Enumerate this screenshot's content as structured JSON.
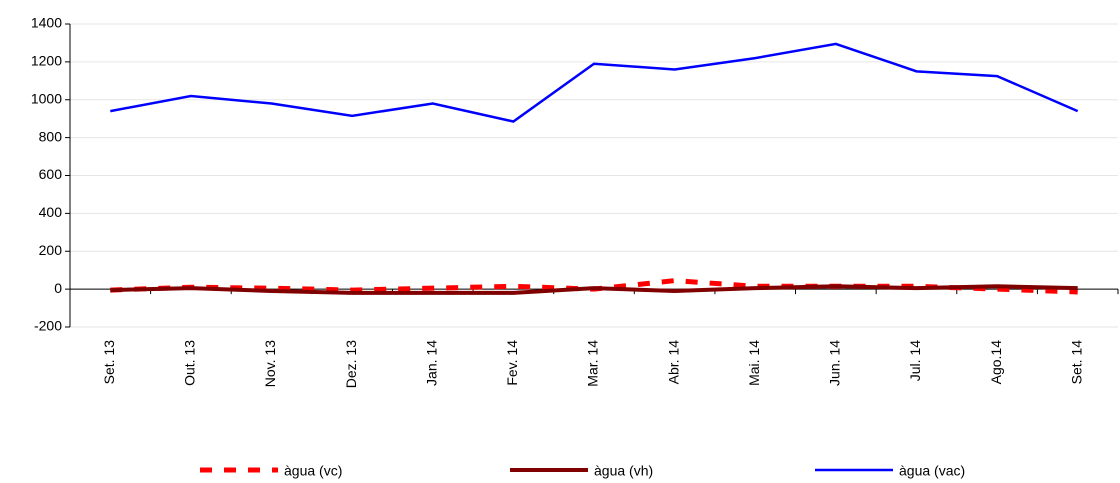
{
  "chart_data": {
    "type": "line",
    "categories": [
      "Set. 13",
      "Out. 13",
      "Nov. 13",
      "Dez. 13",
      "Jan. 14",
      "Fev. 14",
      "Mar. 14",
      "Abr. 14",
      "Mai. 14",
      "Jun. 14",
      "Jul. 14",
      "Ago.14",
      "Set. 14"
    ],
    "series": [
      {
        "name": "àgua (vc)",
        "color": "#ff0000",
        "dashed": true,
        "values": [
          -5,
          10,
          5,
          -5,
          5,
          15,
          0,
          45,
          15,
          15,
          15,
          0,
          -15
        ]
      },
      {
        "name": "àgua (vh)",
        "color": "#800000",
        "dashed": false,
        "values": [
          -5,
          5,
          -10,
          -20,
          -20,
          -20,
          5,
          -10,
          5,
          15,
          5,
          15,
          5
        ]
      },
      {
        "name": "àgua (vac)",
        "color": "#0000ff",
        "dashed": false,
        "values": [
          940,
          1020,
          980,
          915,
          980,
          885,
          1190,
          1160,
          1220,
          1295,
          1150,
          1125,
          940
        ]
      }
    ],
    "ylim": [
      -200,
      1400
    ],
    "yticks": [
      -200,
      0,
      200,
      400,
      600,
      800,
      1000,
      1200,
      1400
    ],
    "grid": true
  }
}
